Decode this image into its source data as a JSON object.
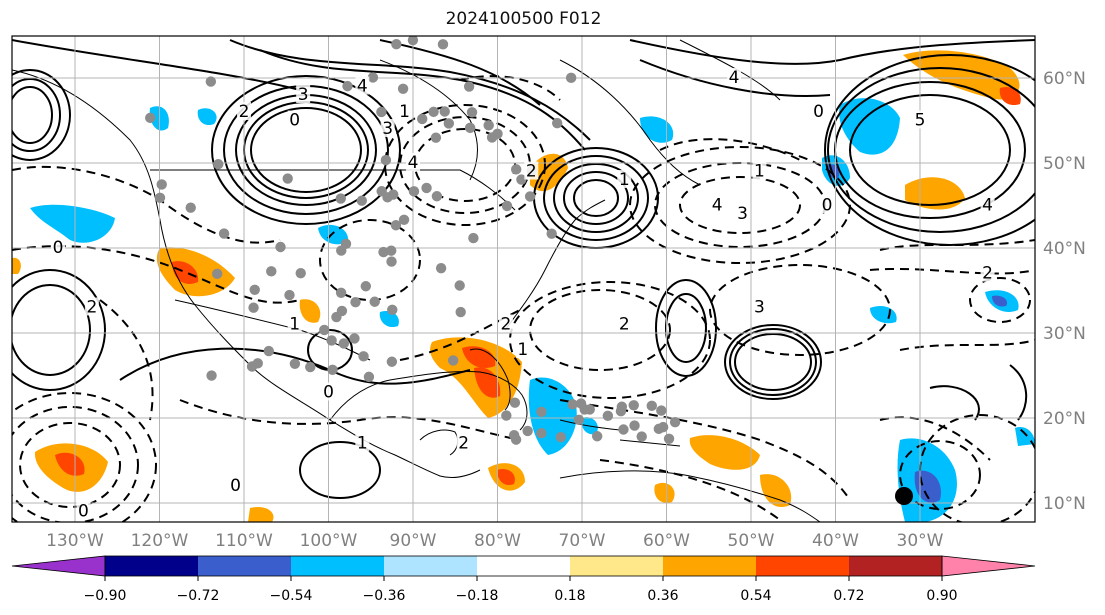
{
  "title": "2024100500 F012",
  "lon_labels": [
    "130°W",
    "120°W",
    "110°W",
    "100°W",
    "90°W",
    "80°W",
    "70°W",
    "60°W",
    "50°W",
    "40°W",
    "30°W"
  ],
  "lat_labels": [
    "60°N",
    "50°N",
    "40°N",
    "30°N",
    "20°N",
    "10°N"
  ],
  "contour_labels": [
    {
      "text": "0",
      "lon": -111,
      "lat": 12,
      "style": "solid"
    },
    {
      "text": "4",
      "lon": -96,
      "lat": 59
    },
    {
      "text": "3",
      "lon": -103,
      "lat": 58
    },
    {
      "text": "2",
      "lon": -110,
      "lat": 56
    },
    {
      "text": "0",
      "lon": -104,
      "lat": 55
    },
    {
      "text": "1",
      "lon": -91,
      "lat": 56
    },
    {
      "text": "3",
      "lon": -93,
      "lat": 54
    },
    {
      "text": "4",
      "lon": -90,
      "lat": 50
    },
    {
      "text": "2",
      "lon": -76,
      "lat": 49
    },
    {
      "text": "1",
      "lon": -65,
      "lat": 48
    },
    {
      "text": "4",
      "lon": -54,
      "lat": 45
    },
    {
      "text": "3",
      "lon": -51,
      "lat": 44
    },
    {
      "text": "1",
      "lon": -49,
      "lat": 49
    },
    {
      "text": "0",
      "lon": -41,
      "lat": 45
    },
    {
      "text": "5",
      "lon": -30,
      "lat": 55
    },
    {
      "text": "4",
      "lon": -22,
      "lat": 45
    },
    {
      "text": "4",
      "lon": -52,
      "lat": 60
    },
    {
      "text": "0",
      "lon": -42,
      "lat": 56
    },
    {
      "text": "2",
      "lon": -128,
      "lat": 33
    },
    {
      "text": "0",
      "lon": -132,
      "lat": 40
    },
    {
      "text": "2",
      "lon": -79,
      "lat": 31
    },
    {
      "text": "1",
      "lon": -77,
      "lat": 28
    },
    {
      "text": "2",
      "lon": -65,
      "lat": 31
    },
    {
      "text": "3",
      "lon": -49,
      "lat": 33
    },
    {
      "text": "2",
      "lon": -22,
      "lat": 37
    },
    {
      "text": "0",
      "lon": -100,
      "lat": 23
    },
    {
      "text": "1",
      "lon": -96,
      "lat": 17
    },
    {
      "text": "2",
      "lon": -84,
      "lat": 17
    },
    {
      "text": "0",
      "lon": -129,
      "lat": 9
    },
    {
      "text": "1",
      "lon": -104,
      "lat": 31
    }
  ],
  "colorbar": {
    "colors": [
      "#9932cc",
      "#00008b",
      "#3a5fcd",
      "#00bfff",
      "#aee4ff",
      "#ffffff",
      "#ffe88a",
      "#ffa500",
      "#ff4500",
      "#b22222",
      "#ff82ab"
    ],
    "tick_labels": [
      "−0.90",
      "−0.72",
      "−0.54",
      "−0.36",
      "−0.18",
      "0.18",
      "0.36",
      "0.54",
      "0.72",
      "0.90"
    ]
  },
  "marker_color": "#000000",
  "station_color": "#8c8c8c"
}
